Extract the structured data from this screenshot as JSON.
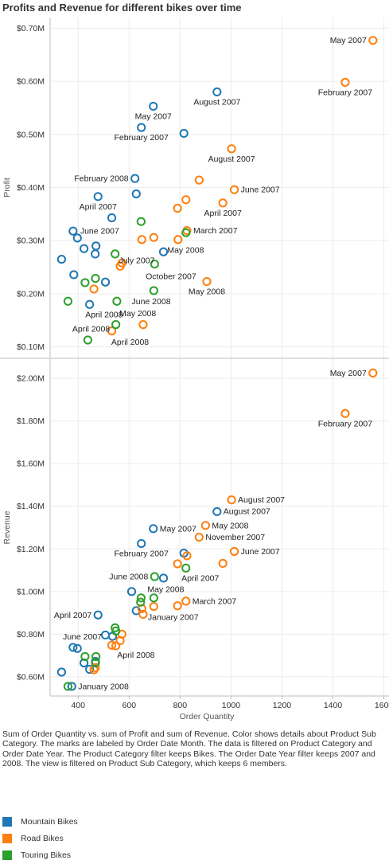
{
  "title": "Profits and Revenue for different bikes over time",
  "caption": "Sum of Order Quantity vs. sum of Profit and sum of Revenue.  Color shows details about Product Sub Category.  The marks are labeled by Order Date Month. The data is filtered on Product Category and Order Date Year. The Product Category filter keeps Bikes. The Order Date Year filter keeps 2007 and 2008. The view is filtered on Product Sub Category, which keeps 6 members.",
  "legend": [
    {
      "name": "Mountain Bikes",
      "color": "#1f77b4"
    },
    {
      "name": "Road Bikes",
      "color": "#ff7f0e"
    },
    {
      "name": "Touring Bikes",
      "color": "#2ca02c"
    }
  ],
  "chart_data": {
    "type": "scatter",
    "xlabel": "Order Quantity",
    "x_ticks": [
      "400",
      "600",
      "800",
      "1000",
      "1200",
      "1400",
      "1600"
    ],
    "x_tick_values": [
      400,
      600,
      800,
      1000,
      1200,
      1400,
      1600
    ],
    "xlim": [
      290,
      1620
    ],
    "panels": [
      {
        "ylabel": "Profit",
        "ylim": [
          0.08,
          0.72
        ],
        "y_ticks": [
          "$0.10M",
          "$0.20M",
          "$0.30M",
          "$0.40M",
          "$0.50M",
          "$0.60M",
          "$0.70M"
        ],
        "y_tick_values": [
          0.1,
          0.2,
          0.3,
          0.4,
          0.5,
          0.6,
          0.7
        ],
        "points": [
          {
            "x": 945,
            "y": 0.58,
            "s": 0,
            "label": "August 2007"
          },
          {
            "x": 695,
            "y": 0.553,
            "s": 0,
            "label": "May 2007"
          },
          {
            "x": 648,
            "y": 0.513,
            "s": 0,
            "label": "February 2007"
          },
          {
            "x": 815,
            "y": 0.502,
            "s": 0
          },
          {
            "x": 623,
            "y": 0.417,
            "s": 0,
            "label": "February 2008"
          },
          {
            "x": 628,
            "y": 0.388,
            "s": 0
          },
          {
            "x": 478,
            "y": 0.383,
            "s": 0,
            "label": "April 2007"
          },
          {
            "x": 532,
            "y": 0.343,
            "s": 0
          },
          {
            "x": 380,
            "y": 0.318,
            "s": 0,
            "label": "June 2007"
          },
          {
            "x": 397,
            "y": 0.305,
            "s": 0
          },
          {
            "x": 470,
            "y": 0.29,
            "s": 0
          },
          {
            "x": 423,
            "y": 0.285,
            "s": 0
          },
          {
            "x": 467,
            "y": 0.275,
            "s": 0
          },
          {
            "x": 335,
            "y": 0.265,
            "s": 0
          },
          {
            "x": 735,
            "y": 0.279,
            "s": 0
          },
          {
            "x": 383,
            "y": 0.236,
            "s": 0
          },
          {
            "x": 507,
            "y": 0.222,
            "s": 0
          },
          {
            "x": 445,
            "y": 0.18,
            "s": 0
          },
          {
            "x": 1557,
            "y": 0.677,
            "s": 1,
            "label": "May 2007"
          },
          {
            "x": 1448,
            "y": 0.598,
            "s": 1,
            "label": "February 2007"
          },
          {
            "x": 1002,
            "y": 0.473,
            "s": 1,
            "label": "August 2007"
          },
          {
            "x": 875,
            "y": 0.414,
            "s": 1
          },
          {
            "x": 1013,
            "y": 0.396,
            "s": 1,
            "label": "June 2007"
          },
          {
            "x": 823,
            "y": 0.377,
            "s": 1
          },
          {
            "x": 790,
            "y": 0.361,
            "s": 1
          },
          {
            "x": 968,
            "y": 0.371,
            "s": 1,
            "label": "April 2007"
          },
          {
            "x": 827,
            "y": 0.319,
            "s": 1,
            "label": "March 2007"
          },
          {
            "x": 697,
            "y": 0.306,
            "s": 1
          },
          {
            "x": 650,
            "y": 0.302,
            "s": 1
          },
          {
            "x": 792,
            "y": 0.302,
            "s": 1
          },
          {
            "x": 572,
            "y": 0.258,
            "s": 1
          },
          {
            "x": 565,
            "y": 0.252,
            "s": 1
          },
          {
            "x": 905,
            "y": 0.223,
            "s": 1,
            "label": "May 2008"
          },
          {
            "x": 462,
            "y": 0.209,
            "s": 1
          },
          {
            "x": 655,
            "y": 0.142,
            "s": 1
          },
          {
            "x": 532,
            "y": 0.13,
            "s": 1
          },
          {
            "x": 647,
            "y": 0.336,
            "s": 2
          },
          {
            "x": 823,
            "y": 0.315,
            "s": 2
          },
          {
            "x": 545,
            "y": 0.275,
            "s": 2
          },
          {
            "x": 700,
            "y": 0.256,
            "s": 2
          },
          {
            "x": 468,
            "y": 0.229,
            "s": 2
          },
          {
            "x": 427,
            "y": 0.221,
            "s": 2
          },
          {
            "x": 697,
            "y": 0.206,
            "s": 2
          },
          {
            "x": 360,
            "y": 0.186,
            "s": 2
          },
          {
            "x": 552,
            "y": 0.186,
            "s": 2
          },
          {
            "x": 548,
            "y": 0.142,
            "s": 2
          },
          {
            "x": 438,
            "y": 0.113,
            "s": 2
          }
        ],
        "labels": [
          {
            "x": 1050,
            "y": 0.708,
            "text": "Profits and Revenue for different bikes over time",
            "skip": true
          },
          {
            "x": 750,
            "y": 0.282,
            "text": "May 2008"
          },
          {
            "x": 560,
            "y": 0.263,
            "text": "July 2007"
          },
          {
            "x": 665,
            "y": 0.233,
            "text": "October 2007"
          },
          {
            "x": 610,
            "y": 0.186,
            "text": "June 2008"
          },
          {
            "x": 562,
            "y": 0.163,
            "text": "May 2008"
          },
          {
            "x": 428,
            "y": 0.161,
            "text": "April 2008"
          },
          {
            "x": 377,
            "y": 0.134,
            "text": "April 2008"
          },
          {
            "x": 530,
            "y": 0.109,
            "text": "April 2008"
          }
        ]
      },
      {
        "ylabel": "Revenue",
        "ylim": [
          0.51,
          2.09
        ],
        "y_ticks": [
          "$0.60M",
          "$0.80M",
          "$1.00M",
          "$1.20M",
          "$1.40M",
          "$1.60M",
          "$1.80M",
          "$2.00M"
        ],
        "y_tick_values": [
          0.6,
          0.8,
          1.0,
          1.2,
          1.4,
          1.6,
          1.8,
          2.0
        ],
        "points": [
          {
            "x": 945,
            "y": 1.375,
            "s": 0,
            "label": "August 2007"
          },
          {
            "x": 695,
            "y": 1.295,
            "s": 0,
            "label": "May 2007"
          },
          {
            "x": 648,
            "y": 1.225,
            "s": 0,
            "label": "February 2007"
          },
          {
            "x": 815,
            "y": 1.18,
            "s": 0
          },
          {
            "x": 735,
            "y": 1.063,
            "s": 0
          },
          {
            "x": 610,
            "y": 1.0,
            "s": 0
          },
          {
            "x": 628,
            "y": 0.91,
            "s": 0
          },
          {
            "x": 478,
            "y": 0.89,
            "s": 0,
            "label": "April 2007"
          },
          {
            "x": 507,
            "y": 0.796,
            "s": 0
          },
          {
            "x": 535,
            "y": 0.79,
            "s": 0
          },
          {
            "x": 380,
            "y": 0.738,
            "s": 0
          },
          {
            "x": 397,
            "y": 0.733,
            "s": 0
          },
          {
            "x": 423,
            "y": 0.665,
            "s": 0
          },
          {
            "x": 468,
            "y": 0.672,
            "s": 0
          },
          {
            "x": 445,
            "y": 0.635,
            "s": 0
          },
          {
            "x": 335,
            "y": 0.622,
            "s": 0
          },
          {
            "x": 375,
            "y": 0.555,
            "s": 0,
            "label": "January 2008"
          },
          {
            "x": 1557,
            "y": 2.025,
            "s": 1,
            "label": "May 2007"
          },
          {
            "x": 1448,
            "y": 1.835,
            "s": 1,
            "label": "February 2007"
          },
          {
            "x": 1002,
            "y": 1.43,
            "s": 1,
            "label": "August 2007"
          },
          {
            "x": 900,
            "y": 1.31,
            "s": 1,
            "label": "May 2008"
          },
          {
            "x": 875,
            "y": 1.255,
            "s": 1,
            "label": "November 2007"
          },
          {
            "x": 1013,
            "y": 1.188,
            "s": 1,
            "label": "June 2007"
          },
          {
            "x": 827,
            "y": 1.168,
            "s": 1
          },
          {
            "x": 790,
            "y": 1.13,
            "s": 1
          },
          {
            "x": 968,
            "y": 1.132,
            "s": 1
          },
          {
            "x": 823,
            "y": 0.955,
            "s": 1,
            "label": "March 2007"
          },
          {
            "x": 790,
            "y": 0.933,
            "s": 1
          },
          {
            "x": 650,
            "y": 0.92,
            "s": 1
          },
          {
            "x": 697,
            "y": 0.93,
            "s": 1
          },
          {
            "x": 655,
            "y": 0.893,
            "s": 1,
            "label": "January 2007"
          },
          {
            "x": 572,
            "y": 0.8,
            "s": 1
          },
          {
            "x": 565,
            "y": 0.77,
            "s": 1
          },
          {
            "x": 532,
            "y": 0.748,
            "s": 1
          },
          {
            "x": 548,
            "y": 0.745,
            "s": 1
          },
          {
            "x": 468,
            "y": 0.643,
            "s": 1
          },
          {
            "x": 462,
            "y": 0.633,
            "s": 1
          },
          {
            "x": 700,
            "y": 1.07,
            "s": 2,
            "label": "June 2008"
          },
          {
            "x": 823,
            "y": 1.11,
            "s": 2,
            "label": "April 2007"
          },
          {
            "x": 647,
            "y": 0.97,
            "s": 2
          },
          {
            "x": 697,
            "y": 0.97,
            "s": 2
          },
          {
            "x": 645,
            "y": 0.95,
            "s": 2
          },
          {
            "x": 545,
            "y": 0.83,
            "s": 2
          },
          {
            "x": 548,
            "y": 0.815,
            "s": 2
          },
          {
            "x": 427,
            "y": 0.695,
            "s": 2
          },
          {
            "x": 470,
            "y": 0.695,
            "s": 2
          },
          {
            "x": 468,
            "y": 0.665,
            "s": 2
          },
          {
            "x": 360,
            "y": 0.555,
            "s": 2
          }
        ],
        "labels": [
          {
            "x": 672,
            "y": 1.01,
            "text": "May 2008"
          },
          {
            "x": 340,
            "y": 0.789,
            "text": "June 2007"
          },
          {
            "x": 553,
            "y": 0.703,
            "text": "April 2008"
          }
        ]
      }
    ]
  }
}
